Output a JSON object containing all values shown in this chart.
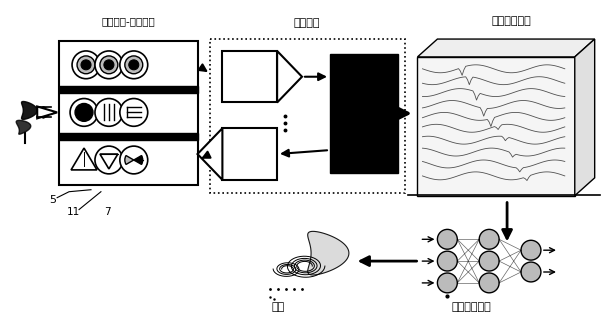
{
  "bg_color": "#ffffff",
  "text_bionic": "仿生气室-传感阵列",
  "text_control": "控制模块",
  "text_spatiotemporal": "时空气味信息",
  "text_decision": "决策",
  "text_pattern": "时空模式处理",
  "label_5": "5",
  "label_11": "11",
  "label_7": "7",
  "fig_width": 6.11,
  "fig_height": 3.18,
  "dpi": 100
}
